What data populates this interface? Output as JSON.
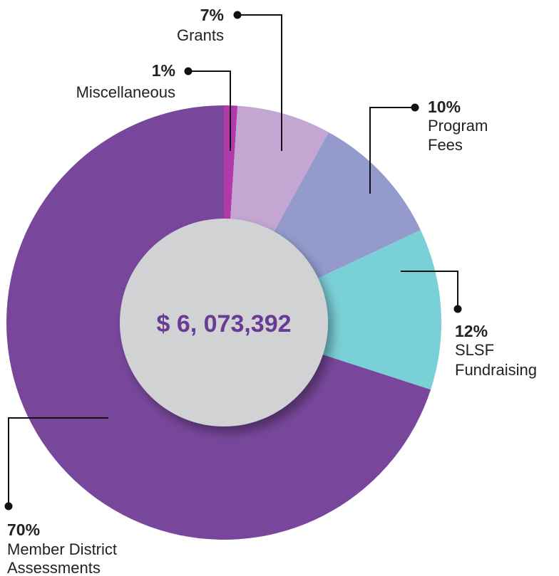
{
  "chart_data": {
    "type": "pie",
    "style": "donut",
    "center_label": "$ 6, 073,392",
    "start": "top, clockwise",
    "slices": [
      {
        "label_lines": [
          "Miscellaneous"
        ],
        "pct_label": "1%",
        "value": 1,
        "color": "#b039ab"
      },
      {
        "label_lines": [
          "Grants"
        ],
        "pct_label": "7%",
        "value": 7,
        "color": "#c3a6d2"
      },
      {
        "label_lines": [
          "Program",
          "Fees"
        ],
        "pct_label": "10%",
        "value": 10,
        "color": "#949bcc"
      },
      {
        "label_lines": [
          "SLSF",
          "Fundraising"
        ],
        "pct_label": "12%",
        "value": 12,
        "color": "#7ad0d7"
      },
      {
        "label_lines": [
          "Member District",
          "Assessments"
        ],
        "pct_label": "70%",
        "value": 70,
        "color": "#78479b"
      }
    ]
  },
  "colors": {
    "center_fill": "#d1d2d4",
    "center_text": "#6a3b94",
    "leader": "#111111",
    "text": "#222222"
  }
}
